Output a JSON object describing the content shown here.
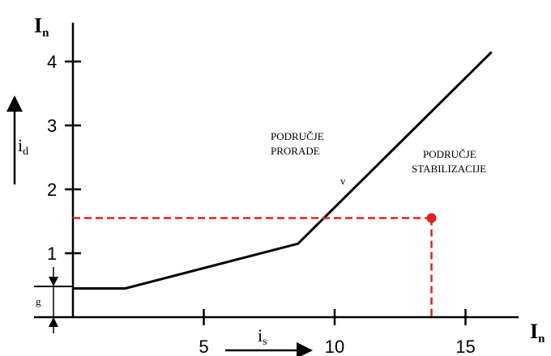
{
  "chart_data": {
    "type": "line",
    "title": "",
    "y_axis": {
      "label": "I",
      "label_sub": "n",
      "ticks": [
        1,
        2,
        3,
        4
      ],
      "range": [
        0,
        4.3
      ]
    },
    "x_axis": {
      "label": "I",
      "label_sub": "n",
      "ticks": [
        5,
        10,
        15
      ],
      "range": [
        0,
        17.5
      ]
    },
    "series": [
      {
        "style": "solid",
        "color": "#000000",
        "points": [
          [
            0,
            0.45
          ],
          [
            2,
            0.45
          ],
          [
            8.6,
            1.15
          ],
          [
            16,
            4.15
          ]
        ]
      }
    ],
    "operating_point": {
      "x": 13.7,
      "y": 1.55,
      "color": "#e02020",
      "style": "dashed"
    },
    "annotations": {
      "region_trip": [
        "PODRUČJE",
        "PRORADE"
      ],
      "region_stabilization": [
        "PODRUČJE",
        "STABILIZACIJE"
      ],
      "curve_label": "v",
      "g_label": "g",
      "id_main": "i",
      "id_sub": "d",
      "is_main": "i",
      "is_sub": "s"
    },
    "grid": false,
    "legend": "none"
  }
}
